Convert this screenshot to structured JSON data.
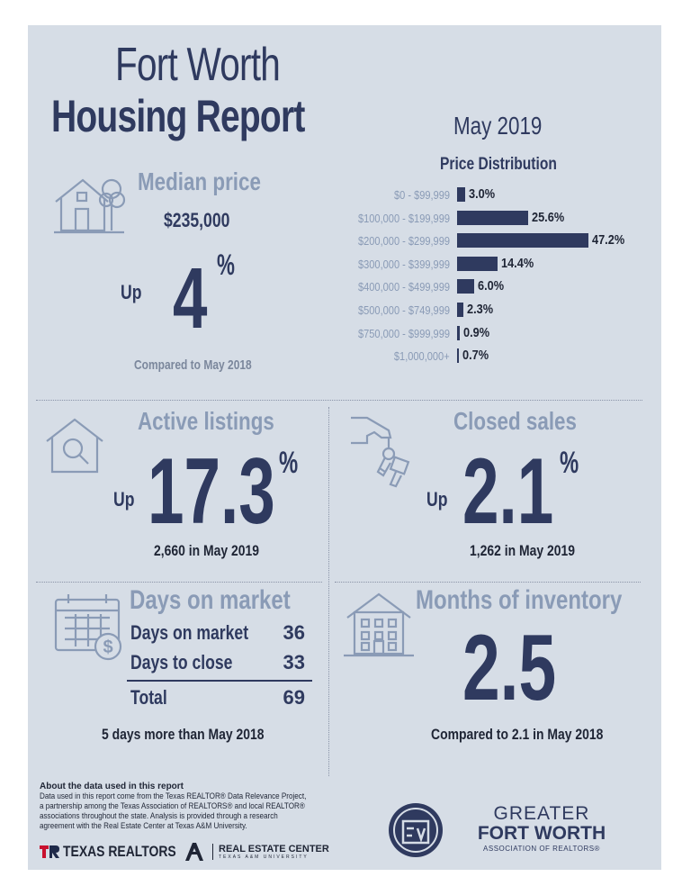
{
  "header": {
    "title_line1": "Fort Worth",
    "title_line2": "Housing Report",
    "period": "May 2019"
  },
  "median": {
    "heading": "Median price",
    "price": "$235,000",
    "direction": "Up",
    "change": "4",
    "percent_sign": "%",
    "note": "Compared to May 2018"
  },
  "distribution": {
    "title": "Price Distribution",
    "rows": [
      {
        "label": "$0 - $99,999",
        "value": 3.0,
        "text": "3.0%"
      },
      {
        "label": "$100,000 - $199,999",
        "value": 25.6,
        "text": "25.6%"
      },
      {
        "label": "$200,000 - $299,999",
        "value": 47.2,
        "text": "47.2%"
      },
      {
        "label": "$300,000 - $399,999",
        "value": 14.4,
        "text": "14.4%"
      },
      {
        "label": "$400,000 - $499,999",
        "value": 6.0,
        "text": "6.0%"
      },
      {
        "label": "$500,000 - $749,999",
        "value": 2.3,
        "text": "2.3%"
      },
      {
        "label": "$750,000 - $999,999",
        "value": 0.9,
        "text": "0.9%"
      },
      {
        "label": "$1,000,000+",
        "value": 0.7,
        "text": "0.7%"
      }
    ]
  },
  "active": {
    "heading": "Active listings",
    "direction": "Up",
    "change": "17.3",
    "percent_sign": "%",
    "note": "2,660 in May 2019"
  },
  "closed": {
    "heading": "Closed sales",
    "direction": "Up",
    "change": "2.1",
    "percent_sign": "%",
    "note": "1,262 in May 2019"
  },
  "dom": {
    "heading": "Days on market",
    "rows": [
      {
        "label": "Days on market",
        "value": "36"
      },
      {
        "label": "Days to close",
        "value": "33"
      }
    ],
    "total_label": "Total",
    "total_value": "69",
    "note": "5 days more than May 2018"
  },
  "inventory": {
    "heading": "Months of inventory",
    "value": "2.5",
    "note": "Compared to 2.1 in May 2018"
  },
  "footer": {
    "about_title": "About the data used in this report",
    "about_text": "Data used in this report come from the Texas REALTOR® Data Relevance Project, a partnership among the Texas Association of REALTORS® and local REALTOR® associations throughout the state. Analysis is provided through a research agreement with the Real Estate Center at Texas A&M University.",
    "texas_realtors": "TEXAS REALTORS",
    "rec_line1": "REAL ESTATE CENTER",
    "rec_line2": "TEXAS A&M UNIVERSITY",
    "gfw_line1": "GREATER",
    "gfw_line2": "FORT WORTH",
    "gfw_line3": "ASSOCIATION OF REALTORS®"
  }
}
